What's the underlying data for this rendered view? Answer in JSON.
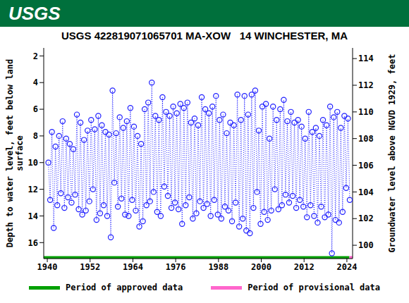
{
  "chart_data": {
    "type": "scatter",
    "header": "USGS",
    "title": "USGS 422819071065701 MA-XOW   14 WINCHESTER, MA",
    "y_label": "Depth to water level, feet below land surface",
    "y2_label": "Groundwater level above NGVD 1929, feet",
    "color": "#1f1fff",
    "marker": "circle_open",
    "line_style": "dotted",
    "x": [
      1940.3,
      1940.8,
      1941.3,
      1941.8,
      1942.3,
      1942.8,
      1943.3,
      1943.8,
      1944.3,
      1944.8,
      1945.3,
      1945.8,
      1946.3,
      1946.8,
      1947.3,
      1947.8,
      1948.3,
      1948.8,
      1949.3,
      1949.8,
      1950.3,
      1950.8,
      1951.3,
      1951.8,
      1952.3,
      1952.8,
      1953.3,
      1953.8,
      1954.3,
      1954.8,
      1955.3,
      1955.8,
      1956.3,
      1956.8,
      1957.3,
      1957.8,
      1958.3,
      1958.8,
      1959.3,
      1959.8,
      1960.3,
      1960.8,
      1961.3,
      1961.8,
      1962.3,
      1962.8,
      1963.3,
      1963.8,
      1964.3,
      1964.8,
      1965.3,
      1965.8,
      1966.3,
      1966.8,
      1967.3,
      1967.8,
      1968.3,
      1968.8,
      1969.3,
      1969.8,
      1970.3,
      1970.8,
      1971.3,
      1971.8,
      1972.3,
      1972.8,
      1973.3,
      1973.8,
      1974.3,
      1974.8,
      1975.3,
      1975.8,
      1976.3,
      1976.8,
      1977.3,
      1977.8,
      1978.3,
      1978.8,
      1979.3,
      1979.8,
      1980.3,
      1980.8,
      1981.3,
      1981.8,
      1982.3,
      1982.8,
      1983.3,
      1983.8,
      1984.3,
      1984.8,
      1985.3,
      1985.8,
      1986.3,
      1986.8,
      1987.3,
      1987.8,
      1988.3,
      1988.8,
      1989.3,
      1989.8,
      1990.3,
      1990.8,
      1991.3,
      1991.8,
      1992.3,
      1992.8,
      1993.3,
      1993.8,
      1994.3,
      1994.8,
      1995.3,
      1995.8,
      1996.3,
      1996.8,
      1997.3,
      1997.8,
      1998.3,
      1998.8,
      1999.3,
      1999.8,
      2000.3,
      2000.8,
      2001.3,
      2001.8,
      2002.3,
      2002.8,
      2003.3,
      2003.8,
      2004.3,
      2004.8,
      2005.3,
      2005.8,
      2006.3,
      2006.8,
      2007.3,
      2007.8,
      2008.3,
      2008.8,
      2009.3,
      2009.8,
      2010.3,
      2010.8,
      2011.3,
      2011.8,
      2012.3,
      2012.8,
      2013.3,
      2013.8,
      2014.3,
      2014.8,
      2015.3,
      2015.8,
      2016.3,
      2016.8,
      2017.3,
      2017.8,
      2018.3,
      2018.8,
      2019.3,
      2019.8,
      2020.3,
      2020.8,
      2021.3,
      2021.8,
      2022.3,
      2022.8,
      2023.3,
      2023.8,
      2024.3,
      2024.8
    ],
    "values": [
      10.0,
      12.8,
      7.7,
      14.9,
      8.8,
      13.2,
      8.0,
      12.3,
      6.9,
      13.4,
      8.2,
      12.6,
      8.6,
      13.0,
      9.0,
      12.4,
      6.4,
      13.5,
      7.0,
      13.9,
      8.3,
      13.6,
      7.6,
      12.9,
      6.8,
      12.0,
      7.5,
      14.3,
      6.5,
      13.8,
      7.2,
      13.2,
      7.7,
      14.0,
      7.9,
      15.6,
      4.6,
      11.5,
      7.8,
      13.3,
      6.6,
      12.7,
      7.4,
      13.9,
      6.9,
      14.0,
      5.9,
      12.8,
      7.3,
      13.6,
      8.0,
      14.8,
      8.6,
      14.4,
      6.0,
      13.2,
      5.5,
      12.9,
      4.0,
      12.2,
      6.5,
      13.7,
      6.8,
      14.0,
      5.1,
      11.8,
      6.2,
      12.5,
      6.5,
      13.4,
      5.8,
      13.0,
      6.3,
      13.5,
      5.6,
      14.6,
      5.9,
      13.2,
      5.5,
      12.6,
      7.0,
      14.2,
      6.7,
      13.8,
      7.2,
      12.9,
      5.1,
      13.4,
      6.0,
      13.1,
      6.3,
      14.0,
      5.8,
      12.8,
      5.0,
      13.9,
      6.8,
      14.2,
      6.4,
      13.3,
      7.8,
      13.6,
      7.0,
      14.4,
      7.2,
      13.0,
      4.9,
      14.8,
      6.8,
      14.2,
      5.0,
      15.1,
      6.4,
      15.3,
      4.9,
      13.4,
      4.6,
      12.2,
      7.6,
      14.6,
      5.8,
      13.7,
      5.6,
      14.3,
      8.2,
      13.6,
      5.8,
      12.0,
      6.8,
      13.5,
      6.0,
      13.2,
      5.3,
      12.4,
      6.9,
      13.0,
      6.2,
      12.5,
      7.0,
      13.4,
      6.8,
      12.8,
      7.3,
      13.3,
      8.2,
      14.1,
      6.2,
      13.2,
      7.7,
      14.0,
      7.4,
      14.5,
      8.0,
      13.3,
      6.8,
      14.1,
      7.2,
      13.9,
      5.8,
      16.8,
      6.6,
      14.3,
      6.2,
      14.5,
      7.4,
      13.7,
      6.5,
      11.9,
      6.7,
      12.8
    ],
    "xlim": [
      1939,
      2025.6
    ],
    "xticks": [
      1940,
      1952,
      1964,
      1976,
      1988,
      2000,
      2012,
      2024
    ],
    "ylim": [
      17.2,
      1.4
    ],
    "yticks": [
      2,
      4,
      6,
      8,
      10,
      12,
      14,
      16
    ],
    "y2lim": [
      99.0,
      114.8
    ],
    "y2ticks": [
      100,
      102,
      104,
      106,
      108,
      110,
      112,
      114
    ],
    "periods": [
      {
        "name": "Period of approved data",
        "color": "#00a000",
        "start": 1939,
        "end": 2024.7
      },
      {
        "name": "Period of provisional data",
        "color": "#ff66cc",
        "start": 2024.7,
        "end": 2025.6
      }
    ]
  }
}
